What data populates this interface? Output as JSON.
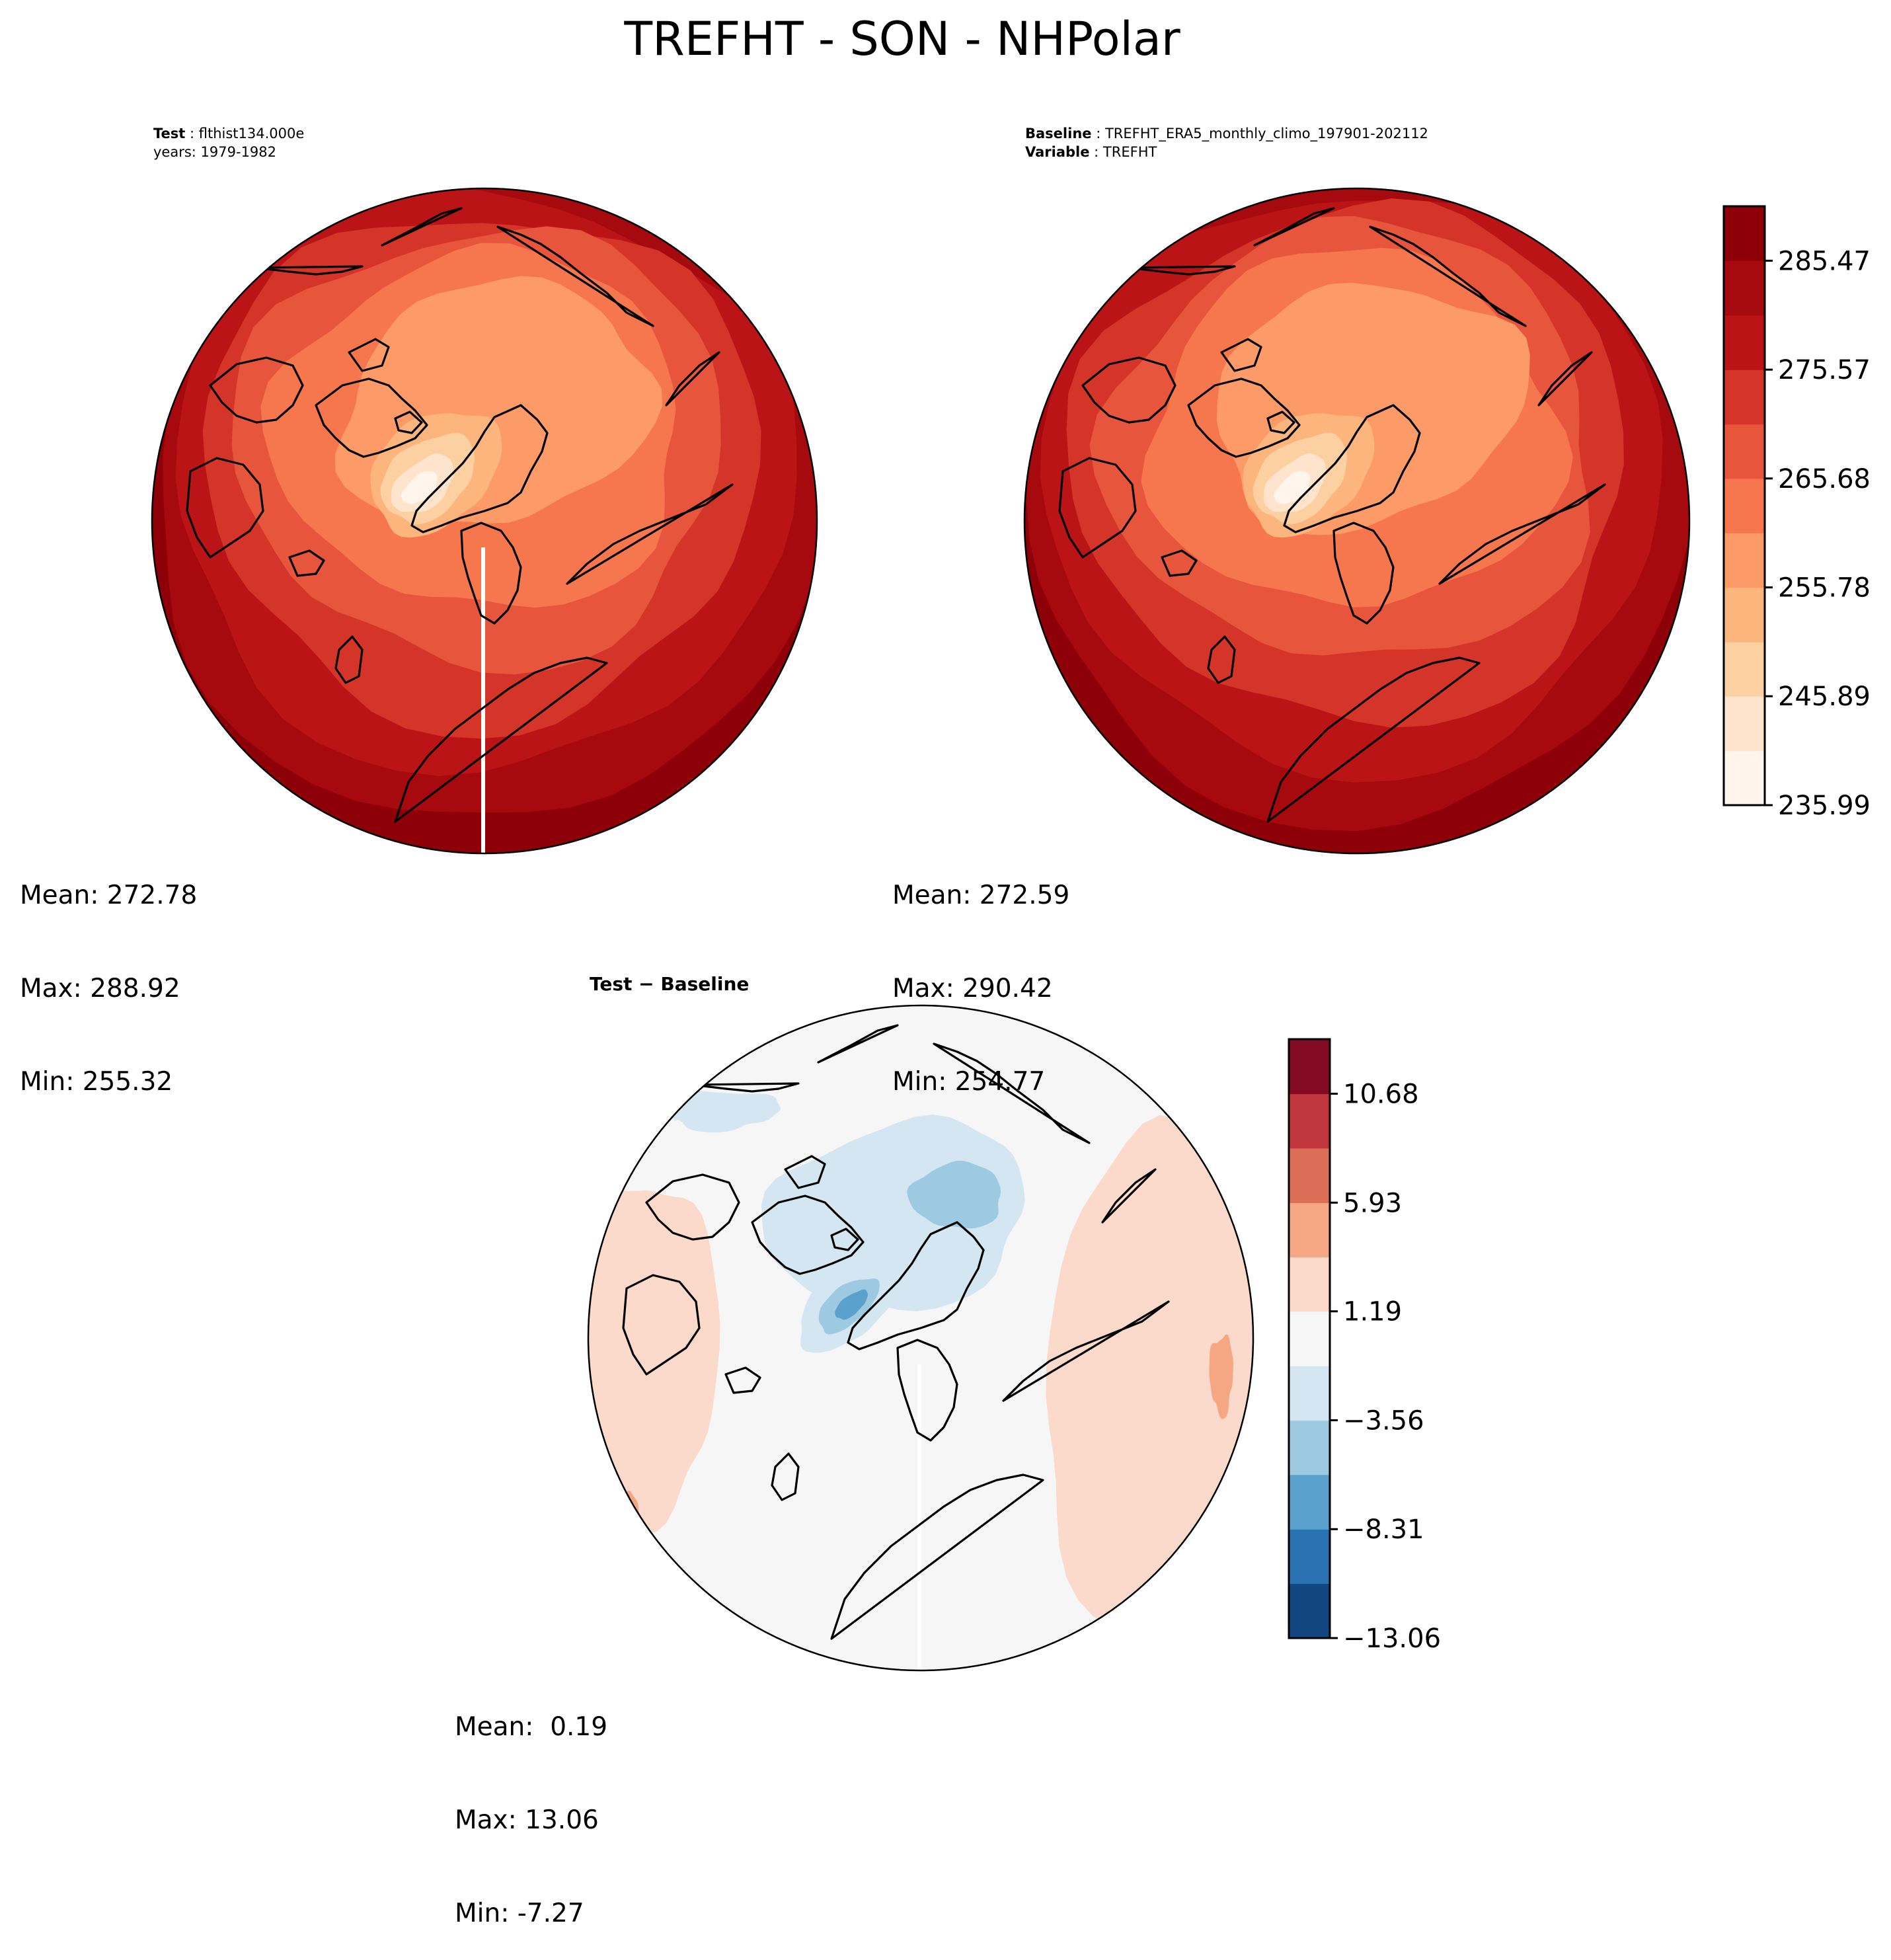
{
  "title": "TREFHT - SON - NHPolar",
  "panels": {
    "test": {
      "header_key1": "Test",
      "header_val1": "flthist134.000e",
      "header_line2": "years: 1979-1982",
      "stats": [
        "Mean: 272.78",
        "Max: 288.92",
        "Min: 255.32"
      ]
    },
    "baseline": {
      "header_key1": "Baseline",
      "header_val1": "TREFHT_ERA5_monthly_climo_197901-202112",
      "header_key2": "Variable",
      "header_val2": "TREFHT",
      "stats": [
        "Mean: 272.59",
        "Max: 290.42",
        "Min: 254.77"
      ]
    },
    "diff": {
      "title": "Test − Baseline",
      "stats": [
        "Mean:  0.19",
        "Max: 13.06",
        "Min: -7.27"
      ]
    }
  },
  "chart_data": [
    {
      "type": "heatmap",
      "name_shown": "Test",
      "projection": "north polar stereographic",
      "colormap": "Reds",
      "stats": {
        "mean": 272.78,
        "max": 288.92,
        "min": 255.32
      }
    },
    {
      "type": "heatmap",
      "name_shown": "Baseline",
      "projection": "north polar stereographic",
      "colormap": "Reds",
      "colorbar": {
        "levels": [
          235.99,
          240.94,
          245.89,
          250.83,
          255.78,
          260.73,
          265.68,
          270.62,
          275.57,
          280.52,
          285.47,
          290.42
        ],
        "tick_values": [
          235.99,
          245.89,
          255.78,
          265.68,
          275.57,
          285.47
        ],
        "tick_labels": [
          "235.99",
          "245.89",
          "255.78",
          "265.68",
          "275.57",
          "285.47"
        ],
        "colors": [
          "#fff5eb",
          "#fee4cc",
          "#fdd0a2",
          "#fcb57d",
          "#fc9b68",
          "#f6774e",
          "#e8553d",
          "#d43528",
          "#bb1416",
          "#a70a0e",
          "#8e0007"
        ]
      },
      "stats": {
        "mean": 272.59,
        "max": 290.42,
        "min": 254.77
      }
    },
    {
      "type": "heatmap",
      "name_shown": "Test − Baseline",
      "projection": "north polar stereographic",
      "colormap": "RdBu_r",
      "colorbar": {
        "levels": [
          -13.06,
          -10.68,
          -8.31,
          -5.93,
          -3.56,
          -1.19,
          1.19,
          3.56,
          5.93,
          8.31,
          10.68,
          13.06
        ],
        "tick_values": [
          -13.06,
          -8.31,
          -3.56,
          1.19,
          5.93,
          10.68
        ],
        "tick_labels": [
          "−13.06",
          "−8.31",
          "−3.56",
          "1.19",
          "5.93",
          "10.68"
        ],
        "colors": [
          "#114680",
          "#2b72b3",
          "#5aa1cd",
          "#9dcae1",
          "#d4e6f1",
          "#f6f6f6",
          "#fbdacb",
          "#f5a784",
          "#dc6e57",
          "#c0363c",
          "#850b24"
        ]
      },
      "stats": {
        "mean": 0.19,
        "max": 13.06,
        "min": -7.27
      }
    }
  ]
}
